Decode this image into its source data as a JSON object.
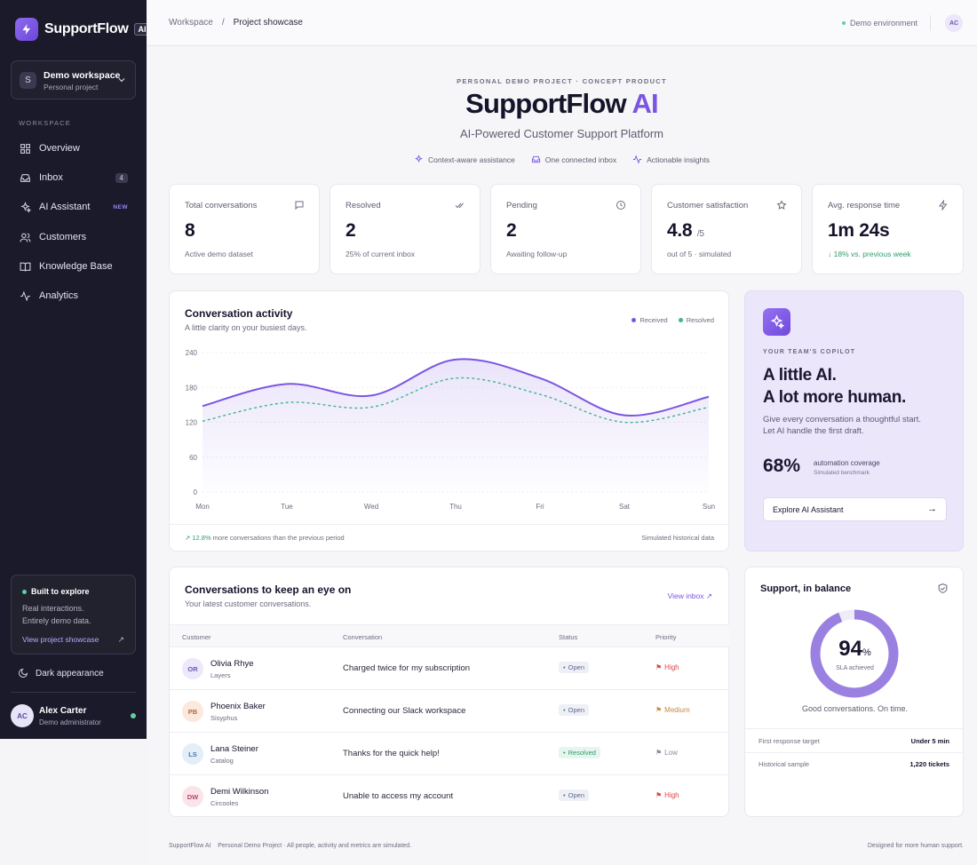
{
  "sidebar": {
    "logo_text": "SupportFlow",
    "logo_badge": "AI",
    "workspace": {
      "initial": "S",
      "name": "Demo workspace",
      "sub": "Personal project"
    },
    "section_label": "WORKSPACE",
    "items": [
      {
        "label": "Overview",
        "icon": "grid-icon"
      },
      {
        "label": "Inbox",
        "icon": "inbox-icon",
        "count": "4"
      },
      {
        "label": "AI Assistant",
        "icon": "sparkles-icon",
        "tag": "NEW"
      },
      {
        "label": "Customers",
        "icon": "users-icon"
      },
      {
        "label": "Knowledge Base",
        "icon": "book-icon"
      },
      {
        "label": "Analytics",
        "icon": "activity-icon"
      }
    ],
    "built": {
      "title": "Built to explore",
      "line1": "Real interactions.",
      "line2": "Entirely demo data.",
      "link": "View project showcase",
      "arrow": "↗"
    },
    "dark_label": "Dark appearance",
    "user": {
      "initials": "AC",
      "name": "Alex Carter",
      "role": "Demo administrator"
    }
  },
  "topbar": {
    "crumb_root": "Workspace",
    "crumb_sep": "/",
    "crumb_current": "Project showcase",
    "env": "Demo environment",
    "avatar": "AC"
  },
  "hero": {
    "eyebrow": "PERSONAL DEMO PROJECT · CONCEPT PRODUCT",
    "title_main": "SupportFlow ",
    "title_accent": "AI",
    "subtitle": "AI-Powered Customer Support Platform",
    "chips": [
      "Context-aware assistance",
      "One connected inbox",
      "Actionable insights"
    ]
  },
  "stats": [
    {
      "label": "Total conversations",
      "value": "8",
      "suffix": "",
      "sub": "Active demo dataset",
      "icon": "chat-icon"
    },
    {
      "label": "Resolved",
      "value": "2",
      "suffix": "",
      "sub": "25% of current inbox",
      "icon": "double-check-icon"
    },
    {
      "label": "Pending",
      "value": "2",
      "suffix": "",
      "sub": "Awaiting follow-up",
      "icon": "clock-icon"
    },
    {
      "label": "Customer satisfaction",
      "value": "4.8",
      "suffix": "/5",
      "sub": "out of 5 · simulated",
      "icon": "star-icon"
    },
    {
      "label": "Avg. response time",
      "value": "1m 24s",
      "suffix": "",
      "sub": "↓ 18% vs. previous week",
      "icon": "bolt-icon"
    }
  ],
  "activity": {
    "title": "Conversation activity",
    "subtitle": "A little clarity on your busiest days.",
    "footer_pct": "↗ 12.8%",
    "footer_text": " more conversations than the previous period",
    "footer_right": "Simulated historical data"
  },
  "chart_data": {
    "type": "line",
    "categories": [
      "Mon",
      "Tue",
      "Wed",
      "Thu",
      "Fri",
      "Sat",
      "Sun"
    ],
    "ylim": [
      0,
      240
    ],
    "yticks": [
      0,
      60,
      120,
      180,
      240
    ],
    "series": [
      {
        "name": "Received",
        "values": [
          148,
          186,
          166,
          228,
          196,
          132,
          164
        ],
        "color": "#7b55e2"
      },
      {
        "name": "Resolved",
        "values": [
          122,
          154,
          146,
          196,
          168,
          120,
          146
        ],
        "color": "#3fb58a"
      }
    ]
  },
  "copilot": {
    "eyebrow": "YOUR TEAM'S COPILOT",
    "heading1": "A little AI.",
    "heading2": "A lot more human.",
    "text": "Give every conversation a thoughtful start. Let AI handle the first draft.",
    "big": "68%",
    "metric": "automation coverage",
    "metric_sub": "Simulated benchmark",
    "button": "Explore AI Assistant",
    "button_arrow": "→"
  },
  "table": {
    "title": "Conversations to keep an eye on",
    "subtitle": "Your latest customer conversations.",
    "link": "View inbox ↗",
    "headers": [
      "Customer",
      "Conversation",
      "Status",
      "Priority"
    ],
    "rows": [
      {
        "initials": "OR",
        "name": "Olivia Rhye",
        "org": "Layers",
        "conversation": "Charged twice for my subscription",
        "status": "Open",
        "priority": "High"
      },
      {
        "initials": "PB",
        "name": "Phoenix Baker",
        "org": "Sisyphus",
        "conversation": "Connecting our Slack workspace",
        "status": "Open",
        "priority": "Medium"
      },
      {
        "initials": "LS",
        "name": "Lana Steiner",
        "org": "Catalog",
        "conversation": "Thanks for the quick help!",
        "status": "Resolved",
        "priority": "Low"
      },
      {
        "initials": "DW",
        "name": "Demi Wilkinson",
        "org": "Circooles",
        "conversation": "Unable to access my account",
        "status": "Open",
        "priority": "High"
      }
    ]
  },
  "balance": {
    "title": "Support, in balance",
    "value": "94",
    "value_unit": "%",
    "sla_fraction": 0.94,
    "label": "SLA achieved",
    "note": "Good conversations. On time.",
    "k1": "First response target",
    "v1": "Under 5 min",
    "k2": "Historical sample",
    "v2": "1,220 tickets"
  },
  "footer": {
    "left": "SupportFlow AI    Personal Demo Project · All people, activity and metrics are simulated.",
    "right": "Designed for more human support."
  },
  "colors": {
    "accent": "#7b55e2",
    "sidebar": "#1a1a2b",
    "green": "#3fb58a"
  }
}
